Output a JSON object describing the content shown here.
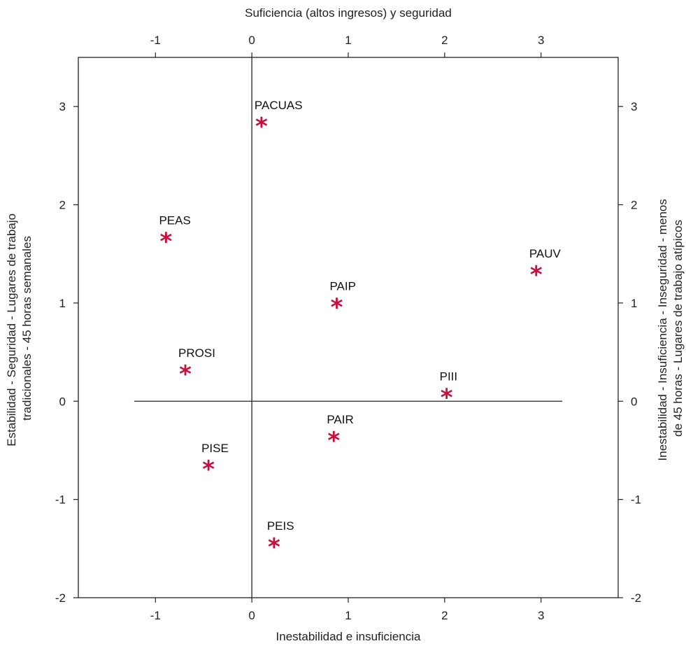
{
  "chart_data": {
    "type": "scatter",
    "title": "",
    "xlabel_top": "Suficiencia (altos ingresos) y seguridad",
    "xlabel_bottom": "Inestabilidad e insuficiencia",
    "ylabel_left": [
      "Estabilidad - Seguridad - Lugares de trabajo",
      "tradicionales - 45 horas semanales"
    ],
    "ylabel_right": [
      "Inestabilidad - Insuficiencia - Inseguridad - menos",
      "de 45 horas - Lugares de trabajo atípicos"
    ],
    "xlim": [
      -1.8,
      3.8
    ],
    "ylim": [
      -2,
      3.5
    ],
    "xticks": [
      -1,
      0,
      1,
      2,
      3
    ],
    "yticks": [
      -2,
      -1,
      0,
      1,
      2,
      3
    ],
    "reference_lines": {
      "horizontal": {
        "y": 0,
        "x_from": -1.22,
        "x_to": 3.22
      },
      "vertical": {
        "x": 0
      }
    },
    "marker": "*",
    "marker_color": "#c8103e",
    "points": [
      {
        "label": "PACUAS",
        "x": 0.1,
        "y": 2.83
      },
      {
        "label": "PEAS",
        "x": -0.89,
        "y": 1.66
      },
      {
        "label": "PAUV",
        "x": 2.95,
        "y": 1.32
      },
      {
        "label": "PAIP",
        "x": 0.88,
        "y": 0.99
      },
      {
        "label": "PROSI",
        "x": -0.69,
        "y": 0.31
      },
      {
        "label": "PIII",
        "x": 2.02,
        "y": 0.07
      },
      {
        "label": "PAIR",
        "x": 0.85,
        "y": -0.37
      },
      {
        "label": "PISE",
        "x": -0.45,
        "y": -0.66
      },
      {
        "label": "PEIS",
        "x": 0.23,
        "y": -1.45
      }
    ]
  }
}
